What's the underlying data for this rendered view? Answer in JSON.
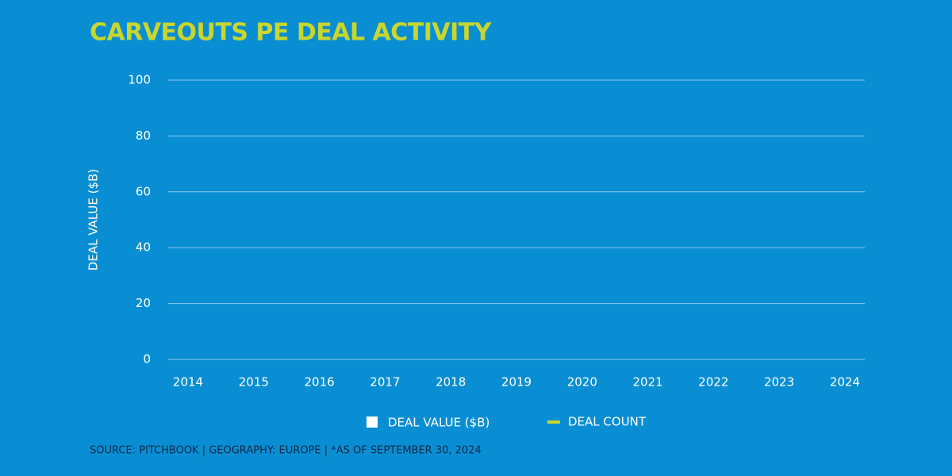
{
  "chart_data": {
    "type": "bar",
    "title": "CARVEOUTS PE DEAL ACTIVITY",
    "y_label": "DEAL VALUE ($B)",
    "categories": [
      "2014",
      "2015",
      "2016",
      "2017",
      "2018",
      "2019",
      "2020",
      "2021",
      "2022",
      "2023",
      "2024"
    ],
    "series": [
      {
        "name": "DEAL VALUE ($B)",
        "color": "#ffffff",
        "values": [
          null,
          null,
          null,
          null,
          null,
          null,
          null,
          null,
          null,
          null,
          null
        ]
      },
      {
        "name": "DEAL COUNT",
        "color": "#c8d62e",
        "values": [
          null,
          null,
          null,
          null,
          null,
          null,
          null,
          null,
          null,
          null,
          null
        ]
      }
    ],
    "ylim": [
      0,
      100
    ],
    "yticks": [
      0,
      20,
      40,
      60,
      80,
      100
    ],
    "grid": true,
    "source": "SOURCE: PITCHBOOK  |  GEOGRAPHY: EUROPE  |  *AS OF SEPTEMBER 30, 2024"
  }
}
